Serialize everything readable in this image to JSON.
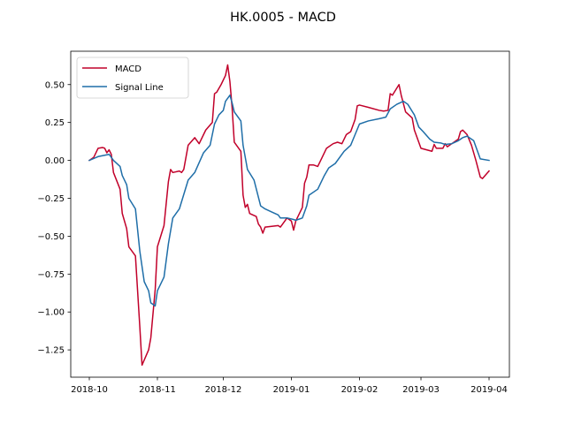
{
  "chart_data": {
    "type": "line",
    "title": "HK.0005 - MACD",
    "xlabel": "",
    "ylabel": "",
    "xlim": [
      "2018-10-01",
      "2019-04-01"
    ],
    "ylim": [
      -1.43,
      0.72
    ],
    "x_ticks": [
      {
        "date": "2018-10-01",
        "label": "2018-10"
      },
      {
        "date": "2018-11-01",
        "label": "2018-11"
      },
      {
        "date": "2018-12-01",
        "label": "2018-12"
      },
      {
        "date": "2019-01-01",
        "label": "2019-01"
      },
      {
        "date": "2019-02-01",
        "label": "2019-02"
      },
      {
        "date": "2019-03-01",
        "label": "2019-03"
      },
      {
        "date": "2019-04-01",
        "label": "2019-04"
      }
    ],
    "y_ticks": [
      0.5,
      0.25,
      0.0,
      -0.25,
      -0.5,
      -0.75,
      -1.0,
      -1.25
    ],
    "y_tick_labels": [
      "0.50",
      "0.25",
      "0.00",
      "−0.25",
      "−0.50",
      "−0.75",
      "−1.00",
      "−1.25"
    ],
    "grid": false,
    "legend_position": "top-left",
    "series": [
      {
        "name": "MACD",
        "color": "#c1002a",
        "points": [
          [
            "2018-10-01",
            0.0
          ],
          [
            "2018-10-03",
            0.02
          ],
          [
            "2018-10-05",
            0.08
          ],
          [
            "2018-10-07",
            0.085
          ],
          [
            "2018-10-08",
            0.08
          ],
          [
            "2018-10-09",
            0.05
          ],
          [
            "2018-10-10",
            0.07
          ],
          [
            "2018-10-11",
            0.04
          ],
          [
            "2018-10-12",
            -0.08
          ],
          [
            "2018-10-15",
            -0.19
          ],
          [
            "2018-10-16",
            -0.35
          ],
          [
            "2018-10-18",
            -0.45
          ],
          [
            "2018-10-19",
            -0.57
          ],
          [
            "2018-10-22",
            -0.63
          ],
          [
            "2018-10-24",
            -1.1
          ],
          [
            "2018-10-25",
            -1.35
          ],
          [
            "2018-10-28",
            -1.25
          ],
          [
            "2018-10-29",
            -1.17
          ],
          [
            "2018-10-31",
            -0.85
          ],
          [
            "2018-11-01",
            -0.57
          ],
          [
            "2018-11-04",
            -0.43
          ],
          [
            "2018-11-06",
            -0.14
          ],
          [
            "2018-11-07",
            -0.06
          ],
          [
            "2018-11-08",
            -0.08
          ],
          [
            "2018-11-11",
            -0.07
          ],
          [
            "2018-11-12",
            -0.08
          ],
          [
            "2018-11-13",
            -0.06
          ],
          [
            "2018-11-15",
            0.1
          ],
          [
            "2018-11-18",
            0.15
          ],
          [
            "2018-11-20",
            0.11
          ],
          [
            "2018-11-23",
            0.2
          ],
          [
            "2018-11-26",
            0.25
          ],
          [
            "2018-11-27",
            0.44
          ],
          [
            "2018-11-28",
            0.45
          ],
          [
            "2018-11-30",
            0.5
          ],
          [
            "2018-12-02",
            0.56
          ],
          [
            "2018-12-03",
            0.63
          ],
          [
            "2018-12-04",
            0.52
          ],
          [
            "2018-12-05",
            0.35
          ],
          [
            "2018-12-06",
            0.12
          ],
          [
            "2018-12-09",
            0.06
          ],
          [
            "2018-12-10",
            -0.23
          ],
          [
            "2018-12-11",
            -0.31
          ],
          [
            "2018-12-12",
            -0.29
          ],
          [
            "2018-12-13",
            -0.35
          ],
          [
            "2018-12-16",
            -0.37
          ],
          [
            "2018-12-17",
            -0.42
          ],
          [
            "2018-12-18",
            -0.44
          ],
          [
            "2018-12-19",
            -0.48
          ],
          [
            "2018-12-20",
            -0.44
          ],
          [
            "2018-12-23",
            -0.435
          ],
          [
            "2018-12-26",
            -0.43
          ],
          [
            "2018-12-27",
            -0.44
          ],
          [
            "2018-12-28",
            -0.42
          ],
          [
            "2018-12-30",
            -0.38
          ],
          [
            "2019-01-01",
            -0.4
          ],
          [
            "2019-01-02",
            -0.46
          ],
          [
            "2019-01-03",
            -0.4
          ],
          [
            "2019-01-06",
            -0.31
          ],
          [
            "2019-01-07",
            -0.15
          ],
          [
            "2019-01-08",
            -0.11
          ],
          [
            "2019-01-09",
            -0.03
          ],
          [
            "2019-01-11",
            -0.03
          ],
          [
            "2019-01-13",
            -0.04
          ],
          [
            "2019-01-15",
            0.02
          ],
          [
            "2019-01-17",
            0.08
          ],
          [
            "2019-01-20",
            0.11
          ],
          [
            "2019-01-22",
            0.12
          ],
          [
            "2019-01-24",
            0.11
          ],
          [
            "2019-01-26",
            0.17
          ],
          [
            "2019-01-28",
            0.19
          ],
          [
            "2019-01-30",
            0.27
          ],
          [
            "2019-01-31",
            0.36
          ],
          [
            "2019-02-01",
            0.365
          ],
          [
            "2019-02-05",
            0.35
          ],
          [
            "2019-02-10",
            0.33
          ],
          [
            "2019-02-12",
            0.325
          ],
          [
            "2019-02-14",
            0.33
          ],
          [
            "2019-02-15",
            0.44
          ],
          [
            "2019-02-16",
            0.43
          ],
          [
            "2019-02-19",
            0.5
          ],
          [
            "2019-02-20",
            0.43
          ],
          [
            "2019-02-22",
            0.32
          ],
          [
            "2019-02-25",
            0.28
          ],
          [
            "2019-02-26",
            0.2
          ],
          [
            "2019-02-28",
            0.12
          ],
          [
            "2019-03-01",
            0.08
          ],
          [
            "2019-03-06",
            0.06
          ],
          [
            "2019-03-07",
            0.105
          ],
          [
            "2019-03-08",
            0.08
          ],
          [
            "2019-03-11",
            0.08
          ],
          [
            "2019-03-12",
            0.11
          ],
          [
            "2019-03-13",
            0.09
          ],
          [
            "2019-03-15",
            0.11
          ],
          [
            "2019-03-18",
            0.14
          ],
          [
            "2019-03-19",
            0.19
          ],
          [
            "2019-03-20",
            0.2
          ],
          [
            "2019-03-22",
            0.17
          ],
          [
            "2019-03-24",
            0.1
          ],
          [
            "2019-03-26",
            0.0
          ],
          [
            "2019-03-28",
            -0.11
          ],
          [
            "2019-03-29",
            -0.12
          ],
          [
            "2019-04-01",
            -0.07
          ]
        ]
      },
      {
        "name": "Signal Line",
        "color": "#1f6ea8",
        "points": [
          [
            "2018-10-01",
            0.0
          ],
          [
            "2018-10-05",
            0.025
          ],
          [
            "2018-10-10",
            0.04
          ],
          [
            "2018-10-12",
            0.0
          ],
          [
            "2018-10-15",
            -0.04
          ],
          [
            "2018-10-16",
            -0.1
          ],
          [
            "2018-10-18",
            -0.16
          ],
          [
            "2018-10-19",
            -0.25
          ],
          [
            "2018-10-22",
            -0.32
          ],
          [
            "2018-10-24",
            -0.6
          ],
          [
            "2018-10-26",
            -0.8
          ],
          [
            "2018-10-28",
            -0.86
          ],
          [
            "2018-10-29",
            -0.94
          ],
          [
            "2018-10-31",
            -0.96
          ],
          [
            "2018-11-01",
            -0.86
          ],
          [
            "2018-11-04",
            -0.77
          ],
          [
            "2018-11-06",
            -0.55
          ],
          [
            "2018-11-08",
            -0.38
          ],
          [
            "2018-11-11",
            -0.32
          ],
          [
            "2018-11-15",
            -0.13
          ],
          [
            "2018-11-18",
            -0.08
          ],
          [
            "2018-11-22",
            0.05
          ],
          [
            "2018-11-25",
            0.1
          ],
          [
            "2018-11-27",
            0.24
          ],
          [
            "2018-11-29",
            0.3
          ],
          [
            "2018-12-01",
            0.33
          ],
          [
            "2018-12-02",
            0.39
          ],
          [
            "2018-12-04",
            0.43
          ],
          [
            "2018-12-05",
            0.38
          ],
          [
            "2018-12-06",
            0.32
          ],
          [
            "2018-12-09",
            0.26
          ],
          [
            "2018-12-10",
            0.1
          ],
          [
            "2018-12-12",
            -0.06
          ],
          [
            "2018-12-15",
            -0.13
          ],
          [
            "2018-12-18",
            -0.3
          ],
          [
            "2018-12-20",
            -0.32
          ],
          [
            "2018-12-23",
            -0.34
          ],
          [
            "2018-12-26",
            -0.36
          ],
          [
            "2018-12-27",
            -0.38
          ],
          [
            "2018-12-30",
            -0.38
          ],
          [
            "2019-01-02",
            -0.39
          ],
          [
            "2019-01-03",
            -0.395
          ],
          [
            "2019-01-06",
            -0.38
          ],
          [
            "2019-01-08",
            -0.3
          ],
          [
            "2019-01-09",
            -0.23
          ],
          [
            "2019-01-13",
            -0.19
          ],
          [
            "2019-01-16",
            -0.1
          ],
          [
            "2019-01-18",
            -0.05
          ],
          [
            "2019-01-21",
            -0.02
          ],
          [
            "2019-01-25",
            0.06
          ],
          [
            "2019-01-28",
            0.1
          ],
          [
            "2019-01-30",
            0.17
          ],
          [
            "2019-02-01",
            0.24
          ],
          [
            "2019-02-05",
            0.26
          ],
          [
            "2019-02-10",
            0.275
          ],
          [
            "2019-02-13",
            0.285
          ],
          [
            "2019-02-15",
            0.34
          ],
          [
            "2019-02-18",
            0.37
          ],
          [
            "2019-02-21",
            0.39
          ],
          [
            "2019-02-23",
            0.37
          ],
          [
            "2019-02-26",
            0.3
          ],
          [
            "2019-02-28",
            0.22
          ],
          [
            "2019-03-02",
            0.19
          ],
          [
            "2019-03-05",
            0.14
          ],
          [
            "2019-03-07",
            0.12
          ],
          [
            "2019-03-10",
            0.115
          ],
          [
            "2019-03-12",
            0.105
          ],
          [
            "2019-03-15",
            0.11
          ],
          [
            "2019-03-18",
            0.13
          ],
          [
            "2019-03-20",
            0.15
          ],
          [
            "2019-03-22",
            0.16
          ],
          [
            "2019-03-25",
            0.13
          ],
          [
            "2019-03-28",
            0.01
          ],
          [
            "2019-04-01",
            0.0
          ]
        ]
      }
    ]
  }
}
